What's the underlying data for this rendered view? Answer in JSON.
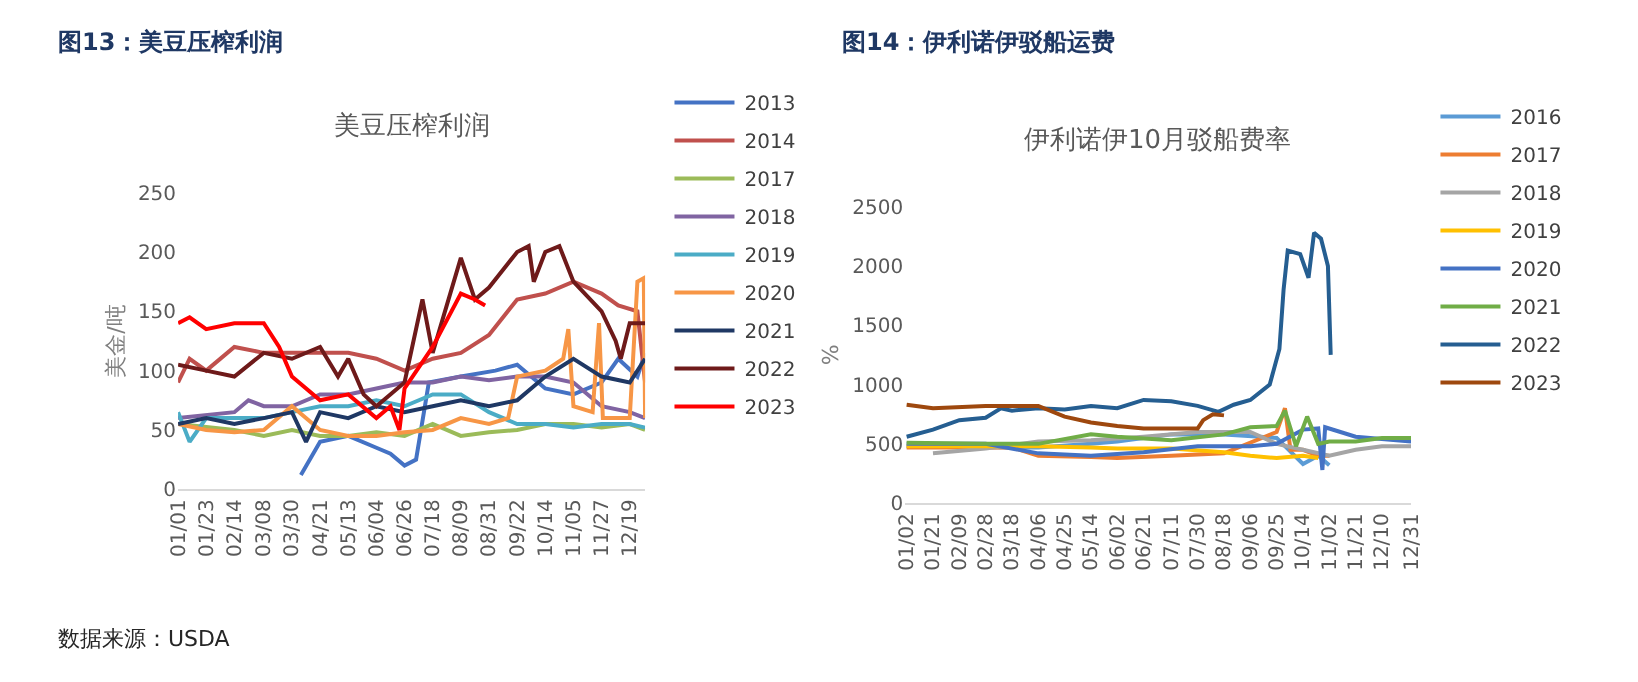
{
  "chart_data": [
    {
      "type": "line",
      "title": "图13：美豆压榨利润",
      "subtitle": "美豆压榨利润",
      "ylabel": "美金/吨",
      "ylim": [
        0,
        250
      ],
      "yticks": [
        0,
        50,
        100,
        150,
        200,
        250
      ],
      "xlim": [
        "--01-01",
        "--12-31"
      ],
      "xticks": [
        {
          "value": "--01-01",
          "label": "01/01"
        },
        {
          "value": "--01-23",
          "label": "01/23"
        },
        {
          "value": "--02-14",
          "label": "02/14"
        },
        {
          "value": "--03-08",
          "label": "03/08"
        },
        {
          "value": "--03-30",
          "label": "03/30"
        },
        {
          "value": "--04-21",
          "label": "04/21"
        },
        {
          "value": "--05-13",
          "label": "05/13"
        },
        {
          "value": "--06-04",
          "label": "06/04"
        },
        {
          "value": "--06-26",
          "label": "06/26"
        },
        {
          "value": "--07-18",
          "label": "07/18"
        },
        {
          "value": "--08-09",
          "label": "08/09"
        },
        {
          "value": "--08-31",
          "label": "08/31"
        },
        {
          "value": "--09-22",
          "label": "09/22"
        },
        {
          "value": "--10-14",
          "label": "10/14"
        },
        {
          "value": "--11-05",
          "label": "11/05"
        },
        {
          "value": "--11-27",
          "label": "11/27"
        },
        {
          "value": "--12-19",
          "label": "12/19"
        }
      ],
      "legend": "right",
      "grid": false,
      "marker": "none",
      "line_style": "solid",
      "annotations": [
        "数据来源：USDA"
      ],
      "series": [
        {
          "name": "2013",
          "color": "#4472c4",
          "x": [
            "--04-06",
            "--04-21",
            "--05-13",
            "--06-04",
            "--06-15",
            "--06-26",
            "--07-05",
            "--07-15",
            "--08-09",
            "--09-05",
            "--09-22",
            "--10-14",
            "--11-05",
            "--11-27",
            "--12-10",
            "--12-25",
            "--12-31"
          ],
          "values": [
            12,
            40,
            45,
            35,
            30,
            20,
            25,
            90,
            95,
            100,
            105,
            85,
            80,
            90,
            110,
            95,
            115
          ]
        },
        {
          "name": "2014",
          "color": "#c0504d",
          "x": [
            "--01-01",
            "--01-10",
            "--01-23",
            "--02-14",
            "--03-08",
            "--03-30",
            "--04-21",
            "--05-13",
            "--06-04",
            "--06-26",
            "--07-18",
            "--08-09",
            "--08-31",
            "--09-22",
            "--10-14",
            "--11-05",
            "--11-27",
            "--12-10",
            "--12-25",
            "--12-31"
          ],
          "values": [
            90,
            110,
            100,
            120,
            115,
            115,
            115,
            115,
            110,
            100,
            110,
            115,
            130,
            160,
            165,
            175,
            165,
            155,
            150,
            90
          ]
        },
        {
          "name": "2017",
          "color": "#9bbb59",
          "x": [
            "--01-01",
            "--02-14",
            "--03-08",
            "--03-30",
            "--04-21",
            "--05-13",
            "--06-04",
            "--06-26",
            "--07-18",
            "--08-09",
            "--08-31",
            "--09-22",
            "--10-14",
            "--11-05",
            "--11-27",
            "--12-19",
            "--12-31"
          ],
          "values": [
            55,
            50,
            45,
            50,
            45,
            45,
            48,
            45,
            55,
            45,
            48,
            50,
            55,
            55,
            52,
            55,
            50
          ]
        },
        {
          "name": "2018",
          "color": "#8064a2",
          "x": [
            "--01-01",
            "--02-14",
            "--02-25",
            "--03-08",
            "--03-30",
            "--04-21",
            "--05-13",
            "--06-04",
            "--06-26",
            "--07-18",
            "--08-09",
            "--08-31",
            "--09-22",
            "--10-14",
            "--11-05",
            "--11-27",
            "--12-19",
            "--12-31"
          ],
          "values": [
            60,
            65,
            75,
            70,
            70,
            80,
            80,
            85,
            90,
            90,
            95,
            92,
            95,
            95,
            90,
            70,
            65,
            60
          ]
        },
        {
          "name": "2019",
          "color": "#4bacc6",
          "x": [
            "--01-01",
            "--01-10",
            "--01-23",
            "--02-14",
            "--03-08",
            "--03-30",
            "--04-21",
            "--05-13",
            "--06-04",
            "--06-26",
            "--07-18",
            "--08-09",
            "--08-31",
            "--09-22",
            "--10-14",
            "--11-05",
            "--11-27",
            "--12-19",
            "--12-31"
          ],
          "values": [
            65,
            40,
            60,
            60,
            60,
            65,
            70,
            70,
            75,
            70,
            80,
            80,
            65,
            55,
            55,
            52,
            55,
            55,
            52
          ]
        },
        {
          "name": "2020",
          "color": "#f79646",
          "x": [
            "--01-01",
            "--01-23",
            "--02-14",
            "--03-08",
            "--03-30",
            "--04-21",
            "--05-13",
            "--06-04",
            "--06-26",
            "--07-18",
            "--08-09",
            "--08-31",
            "--09-15",
            "--09-22",
            "--10-14",
            "--10-28",
            "--11-01",
            "--11-05",
            "--11-20",
            "--11-25",
            "--11-28",
            "--12-19",
            "--12-25",
            "--12-30",
            "--12-31"
          ],
          "values": [
            55,
            50,
            48,
            50,
            70,
            50,
            45,
            45,
            48,
            50,
            60,
            55,
            60,
            95,
            100,
            110,
            135,
            70,
            65,
            140,
            60,
            60,
            175,
            178,
            60
          ]
        },
        {
          "name": "2021",
          "color": "#1f3864",
          "x": [
            "--01-01",
            "--01-23",
            "--02-14",
            "--03-08",
            "--03-30",
            "--04-10",
            "--04-21",
            "--05-13",
            "--06-04",
            "--06-26",
            "--07-18",
            "--08-09",
            "--08-31",
            "--09-22",
            "--10-14",
            "--11-05",
            "--11-27",
            "--12-19",
            "--12-31"
          ],
          "values": [
            55,
            60,
            55,
            60,
            65,
            40,
            65,
            60,
            70,
            65,
            70,
            75,
            70,
            75,
            95,
            110,
            95,
            90,
            110
          ]
        },
        {
          "name": "2022",
          "color": "#6e1a1a",
          "x": [
            "--01-01",
            "--01-23",
            "--02-14",
            "--03-08",
            "--03-30",
            "--04-21",
            "--05-05",
            "--05-13",
            "--05-25",
            "--06-04",
            "--06-26",
            "--07-10",
            "--07-18",
            "--08-09",
            "--08-20",
            "--08-31",
            "--09-22",
            "--10-01",
            "--10-05",
            "--10-14",
            "--10-25",
            "--11-05",
            "--11-27",
            "--12-08",
            "--12-12",
            "--12-19",
            "--12-31"
          ],
          "values": [
            105,
            100,
            95,
            115,
            110,
            120,
            95,
            110,
            80,
            70,
            90,
            160,
            115,
            195,
            160,
            170,
            200,
            205,
            175,
            200,
            205,
            175,
            150,
            125,
            110,
            140,
            140
          ]
        },
        {
          "name": "2023",
          "color": "#ff0000",
          "x": [
            "--01-01",
            "--01-10",
            "--01-23",
            "--02-14",
            "--03-08",
            "--03-20",
            "--03-30",
            "--04-21",
            "--05-13",
            "--06-04",
            "--06-15",
            "--06-22",
            "--06-26",
            "--07-18",
            "--08-09",
            "--08-20",
            "--08-28"
          ],
          "values": [
            140,
            145,
            135,
            140,
            140,
            120,
            95,
            75,
            80,
            60,
            70,
            50,
            85,
            120,
            165,
            160,
            155
          ]
        }
      ]
    },
    {
      "type": "line",
      "title": "图14：伊利诺伊驳船运费",
      "subtitle": "伊利诺伊10月驳船费率",
      "ylabel": "%",
      "ylim": [
        0,
        2500
      ],
      "yticks": [
        0,
        500,
        1000,
        1500,
        2000,
        2500
      ],
      "xlim": [
        "--01-01",
        "--12-31"
      ],
      "xticks": [
        {
          "value": "--01-02",
          "label": "01/02"
        },
        {
          "value": "--01-21",
          "label": "01/21"
        },
        {
          "value": "--02-09",
          "label": "02/09"
        },
        {
          "value": "--02-28",
          "label": "02/28"
        },
        {
          "value": "--03-18",
          "label": "03/18"
        },
        {
          "value": "--04-06",
          "label": "04/06"
        },
        {
          "value": "--04-25",
          "label": "04/25"
        },
        {
          "value": "--05-14",
          "label": "05/14"
        },
        {
          "value": "--06-02",
          "label": "06/02"
        },
        {
          "value": "--06-21",
          "label": "06/21"
        },
        {
          "value": "--07-11",
          "label": "07/11"
        },
        {
          "value": "--07-30",
          "label": "07/30"
        },
        {
          "value": "--08-18",
          "label": "08/18"
        },
        {
          "value": "--09-06",
          "label": "09/06"
        },
        {
          "value": "--09-25",
          "label": "09/25"
        },
        {
          "value": "--10-14",
          "label": "10/14"
        },
        {
          "value": "--11-02",
          "label": "11/02"
        },
        {
          "value": "--11-21",
          "label": "11/21"
        },
        {
          "value": "--12-10",
          "label": "12/10"
        },
        {
          "value": "--12-31",
          "label": "12/31"
        }
      ],
      "legend": "right",
      "grid": false,
      "marker": "none",
      "line_style": "solid",
      "series": [
        {
          "name": "2016",
          "color": "#5b9bd5",
          "x": [
            "--01-02",
            "--03-18",
            "--04-06",
            "--05-14",
            "--06-02",
            "--07-11",
            "--08-18",
            "--09-25",
            "--10-14",
            "--10-25",
            "--11-02"
          ],
          "values": [
            480,
            470,
            470,
            500,
            520,
            580,
            580,
            550,
            330,
            400,
            320
          ]
        },
        {
          "name": "2017",
          "color": "#ed7d31",
          "x": [
            "--01-02",
            "--03-18",
            "--04-06",
            "--05-14",
            "--06-02",
            "--07-11",
            "--08-18",
            "--09-25",
            "--10-01",
            "--10-05",
            "--10-14",
            "--10-25",
            "--11-02"
          ],
          "values": [
            470,
            470,
            400,
            390,
            380,
            400,
            420,
            600,
            800,
            450,
            450,
            400,
            400
          ]
        },
        {
          "name": "2018",
          "color": "#a5a5a5",
          "x": [
            "--01-21",
            "--02-28",
            "--04-06",
            "--05-14",
            "--06-21",
            "--07-30",
            "--09-06",
            "--09-25",
            "--10-14",
            "--11-02",
            "--11-21",
            "--12-10",
            "--12-31"
          ],
          "values": [
            420,
            460,
            520,
            530,
            560,
            600,
            600,
            500,
            450,
            400,
            450,
            480,
            480
          ]
        },
        {
          "name": "2019",
          "color": "#ffc000",
          "x": [
            "--01-02",
            "--04-06",
            "--05-14",
            "--06-02",
            "--07-11",
            "--08-18",
            "--09-06",
            "--09-25",
            "--10-14",
            "--10-25"
          ],
          "values": [
            480,
            480,
            470,
            460,
            460,
            430,
            400,
            380,
            400,
            380
          ]
        },
        {
          "name": "2020",
          "color": "#4472c4",
          "x": [
            "--01-02",
            "--02-28",
            "--04-06",
            "--05-14",
            "--06-21",
            "--07-30",
            "--09-06",
            "--09-25",
            "--10-14",
            "--10-25",
            "--10-28",
            "--10-30",
            "--11-21",
            "--12-31"
          ],
          "values": [
            500,
            500,
            420,
            400,
            430,
            480,
            480,
            500,
            620,
            630,
            280,
            640,
            560,
            520
          ]
        },
        {
          "name": "2021",
          "color": "#70ad47",
          "x": [
            "--01-02",
            "--02-28",
            "--04-06",
            "--05-14",
            "--06-02",
            "--07-11",
            "--08-18",
            "--09-06",
            "--09-25",
            "--10-01",
            "--10-09",
            "--10-17",
            "--10-25",
            "--11-02",
            "--11-21",
            "--12-10",
            "--12-31"
          ],
          "values": [
            510,
            500,
            500,
            580,
            560,
            530,
            580,
            640,
            650,
            780,
            480,
            730,
            500,
            520,
            520,
            550,
            550
          ]
        },
        {
          "name": "2022",
          "color": "#255e91",
          "x": [
            "--01-02",
            "--01-21",
            "--02-09",
            "--02-28",
            "--03-10",
            "--03-18",
            "--04-06",
            "--04-25",
            "--05-14",
            "--06-02",
            "--06-21",
            "--07-11",
            "--07-30",
            "--08-14",
            "--08-25",
            "--09-06",
            "--09-20",
            "--09-27",
            "--09-30",
            "--10-03",
            "--10-12",
            "--10-18",
            "--10-22",
            "--10-27",
            "--11-01",
            "--11-03"
          ],
          "values": [
            560,
            620,
            700,
            720,
            800,
            780,
            800,
            790,
            820,
            800,
            870,
            860,
            820,
            770,
            830,
            870,
            1000,
            1300,
            1800,
            2130,
            2100,
            1900,
            2280,
            2230,
            2000,
            1250
          ]
        },
        {
          "name": "2023",
          "color": "#9e480e",
          "x": [
            "--01-02",
            "--01-21",
            "--02-28",
            "--04-06",
            "--04-25",
            "--05-14",
            "--06-02",
            "--06-21",
            "--07-11",
            "--07-30",
            "--08-03",
            "--08-10",
            "--08-18"
          ],
          "values": [
            830,
            800,
            820,
            820,
            730,
            680,
            650,
            630,
            630,
            630,
            700,
            750,
            740
          ]
        }
      ]
    }
  ]
}
